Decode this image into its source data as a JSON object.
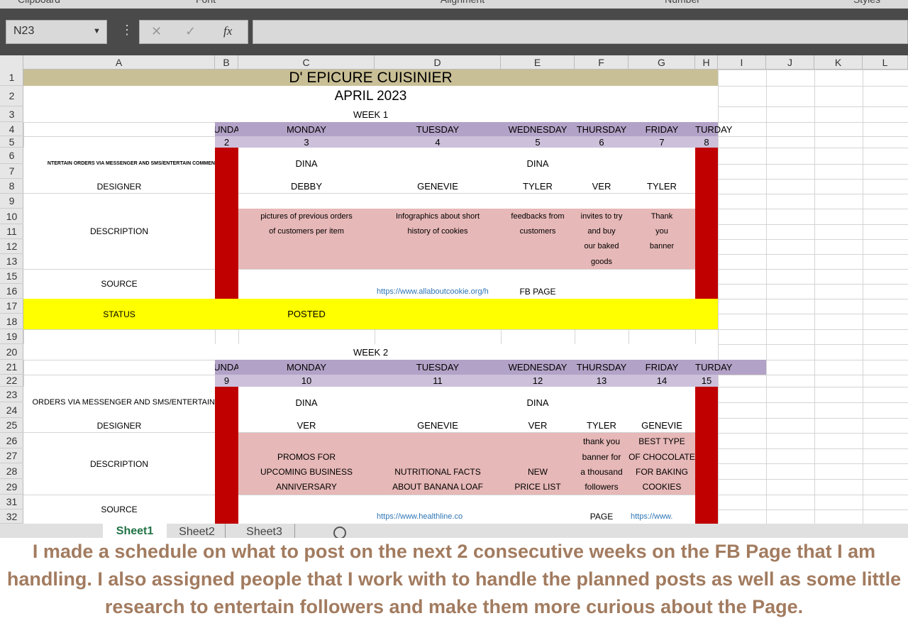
{
  "ribbon_groups": [
    "Clipboard",
    "Font",
    "Alignment",
    "Number",
    "Styles"
  ],
  "formula_bar": {
    "name_box": "N23",
    "function_label": "fx"
  },
  "column_headers": [
    "A",
    "B",
    "C",
    "D",
    "E",
    "F",
    "G",
    "H",
    "I",
    "J",
    "K",
    "L"
  ],
  "row_headers": [
    1,
    2,
    3,
    4,
    5,
    6,
    7,
    8,
    9,
    10,
    11,
    12,
    13,
    15,
    16,
    17,
    18,
    19,
    20,
    21,
    22,
    23,
    24,
    25,
    26,
    27,
    28,
    29,
    31,
    32
  ],
  "sheet": {
    "title": "D' EPICURE CUISINIER",
    "month": "APRIL 2023",
    "weeks": [
      {
        "label": "WEEK 1",
        "days": [
          "UNDA",
          "MONDAY",
          "TUESDAY",
          "WEDNESDAY",
          "THURSDAY",
          "FRIDAY",
          "TURDAY"
        ],
        "dates": [
          2,
          3,
          4,
          5,
          6,
          7,
          8
        ],
        "task_label": "NTERTAIN ORDERS VIA MESSENGER AND SMS/ENTERTAIN COMMEN",
        "tasks": [
          "DINA",
          null,
          "DINA",
          null,
          null
        ],
        "designer_label": "DESIGNER",
        "designers": [
          "DEBBY",
          "GENEVIE",
          "TYLER",
          "VER",
          "TYLER"
        ],
        "description_label": "DESCRIPTION",
        "descriptions": [
          [
            "pictures of previous orders",
            "of customers per item"
          ],
          [
            "Infographics about short",
            "history of cookies"
          ],
          [
            "feedbacks from",
            "customers"
          ],
          [
            "invites to try",
            "and buy",
            "our baked",
            "goods"
          ],
          [
            "Thank",
            "you",
            "banner"
          ]
        ],
        "source_label": "SOURCE",
        "sources": [
          null,
          "https://www.allaboutcookie.org/h",
          "FB PAGE",
          null,
          null
        ],
        "status_label": "STATUS",
        "statuses": [
          "POSTED",
          null,
          null,
          null,
          null
        ]
      },
      {
        "label": "WEEK 2",
        "days": [
          "UNDA",
          "MONDAY",
          "TUESDAY",
          "WEDNESDAY",
          "THURSDAY",
          "FRIDAY",
          "TURDAY"
        ],
        "dates": [
          9,
          10,
          11,
          12,
          13,
          14,
          15
        ],
        "task_label": "ORDERS VIA MESSENGER AND SMS/ENTERTAIN",
        "tasks": [
          "DINA",
          null,
          "DINA",
          null,
          null
        ],
        "designer_label": "DESIGNER",
        "designers": [
          "VER",
          "GENEVIE",
          "VER",
          "TYLER",
          "GENEVIE"
        ],
        "description_label": "DESCRIPTION",
        "descriptions": [
          [
            "PROMOS FOR",
            "UPCOMING BUSINESS",
            "ANNIVERSARY"
          ],
          [
            "NUTRITIONAL FACTS",
            "ABOUT BANANA LOAF"
          ],
          [
            "NEW",
            "PRICE LIST"
          ],
          [
            "thank you",
            "banner for",
            "a thousand",
            "followers"
          ],
          [
            "BEST TYPE",
            "OF CHOCOLATE",
            "FOR BAKING",
            "COOKIES"
          ]
        ],
        "source_label": "SOURCE",
        "sources": [
          null,
          "https://www.healthline.co",
          null,
          "PAGE",
          "https://www."
        ]
      }
    ]
  },
  "sheet_tabs": [
    "Sheet1",
    "Sheet2",
    "Sheet3"
  ],
  "caption": "I made a schedule on what to post on the next 2 consecutive weeks on the FB Page that I am handling. I also assigned people that I work with to handle the planned posts as well as some little research to entertain followers and make them more curious about the Page."
}
